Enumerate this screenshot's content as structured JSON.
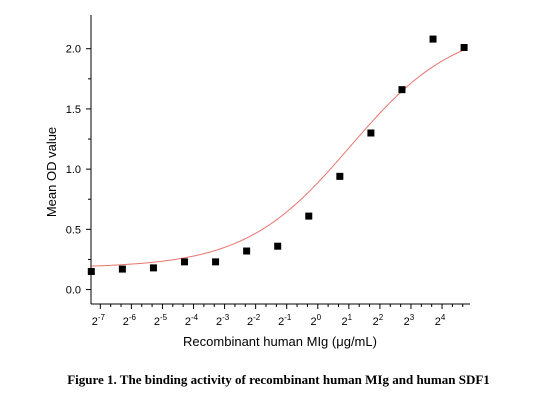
{
  "caption": "Figure 1. The binding activity of recombinant human MIg and human SDF1",
  "chart_data": {
    "type": "scatter",
    "xlabel": "Recombinant human MIg (μg/mL)",
    "ylabel": "Mean OD value",
    "x_scale": "log2",
    "xlim": [
      -7.3,
      4.9
    ],
    "ylim": [
      -0.12,
      2.28
    ],
    "x_ticks": [
      {
        "exp": -7,
        "label": "2",
        "sup": "-7"
      },
      {
        "exp": -6,
        "label": "2",
        "sup": "-6"
      },
      {
        "exp": -5,
        "label": "2",
        "sup": "-5"
      },
      {
        "exp": -4,
        "label": "2",
        "sup": "-4"
      },
      {
        "exp": -3,
        "label": "2",
        "sup": "-3"
      },
      {
        "exp": -2,
        "label": "2",
        "sup": "-2"
      },
      {
        "exp": -1,
        "label": "2",
        "sup": "-1"
      },
      {
        "exp": 0,
        "label": "2",
        "sup": "0"
      },
      {
        "exp": 1,
        "label": "2",
        "sup": "1"
      },
      {
        "exp": 2,
        "label": "2",
        "sup": "2"
      },
      {
        "exp": 3,
        "label": "2",
        "sup": "3"
      },
      {
        "exp": 4,
        "label": "2",
        "sup": "4"
      }
    ],
    "y_ticks": [
      {
        "value": 0.0,
        "label": "0.0"
      },
      {
        "value": 0.5,
        "label": "0.5"
      },
      {
        "value": 1.0,
        "label": "1.0"
      },
      {
        "value": 1.5,
        "label": "1.5"
      },
      {
        "value": 2.0,
        "label": "2.0"
      }
    ],
    "series": [
      {
        "marker": "square",
        "color": "#000000",
        "points": [
          {
            "log2x": -7.29,
            "y": 0.15
          },
          {
            "log2x": -6.29,
            "y": 0.17
          },
          {
            "log2x": -5.29,
            "y": 0.18
          },
          {
            "log2x": -4.29,
            "y": 0.23
          },
          {
            "log2x": -3.29,
            "y": 0.23
          },
          {
            "log2x": -2.29,
            "y": 0.32
          },
          {
            "log2x": -1.29,
            "y": 0.36
          },
          {
            "log2x": -0.29,
            "y": 0.61
          },
          {
            "log2x": 0.71,
            "y": 0.94
          },
          {
            "log2x": 1.71,
            "y": 1.3
          },
          {
            "log2x": 2.71,
            "y": 1.66
          },
          {
            "log2x": 3.71,
            "y": 2.08
          },
          {
            "log2x": 4.71,
            "y": 2.01
          }
        ]
      }
    ],
    "fit": {
      "model": "4PL",
      "color": "#e8746f",
      "bottom": 0.18,
      "top": 2.2,
      "log2_ec50": 1.05,
      "slope": 0.85
    },
    "grid": false
  }
}
